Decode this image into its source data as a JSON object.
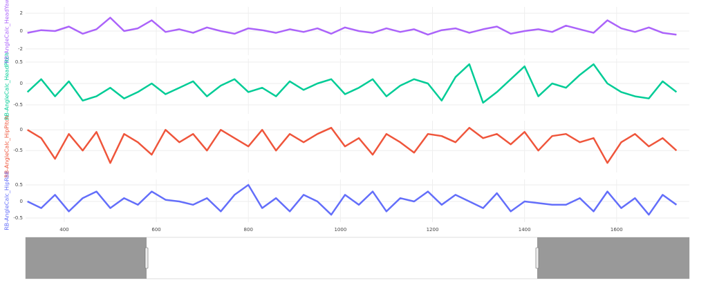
{
  "chart_data": [
    {
      "type": "line",
      "ylabel": "RB-AngleCalc_HeadYaw",
      "xlim": [
        316,
        1758
      ],
      "ylim": [
        -2.7,
        2.7
      ],
      "yticks": [
        -2,
        0,
        2
      ],
      "grid": true,
      "x": [
        320,
        350,
        380,
        410,
        440,
        470,
        500,
        530,
        560,
        590,
        620,
        650,
        680,
        710,
        740,
        770,
        800,
        830,
        860,
        890,
        920,
        950,
        980,
        1010,
        1040,
        1070,
        1100,
        1130,
        1160,
        1190,
        1220,
        1250,
        1280,
        1310,
        1340,
        1370,
        1400,
        1430,
        1460,
        1490,
        1520,
        1550,
        1580,
        1610,
        1640,
        1670,
        1700,
        1730
      ],
      "series": [
        {
          "name": "RB-AngleCalc_HeadYaw",
          "color": "#ab63fa",
          "values": [
            -0.2,
            0.1,
            0.0,
            0.5,
            -0.3,
            0.2,
            1.5,
            0.0,
            0.3,
            1.2,
            -0.1,
            0.2,
            -0.2,
            0.4,
            0.0,
            -0.3,
            0.3,
            0.1,
            -0.2,
            0.2,
            -0.1,
            0.3,
            -0.3,
            0.4,
            0.0,
            -0.2,
            0.3,
            -0.1,
            0.2,
            -0.4,
            0.1,
            0.3,
            -0.2,
            0.2,
            0.5,
            -0.3,
            0.0,
            0.2,
            -0.1,
            0.6,
            0.2,
            -0.2,
            1.2,
            0.3,
            -0.1,
            0.4,
            -0.2,
            -0.4
          ]
        }
      ]
    },
    {
      "type": "line",
      "ylabel": "RB-AngleCalc_HeadPitch",
      "xlim": [
        316,
        1758
      ],
      "ylim": [
        -0.71,
        0.58
      ],
      "yticks": [
        -0.5,
        0,
        0.5
      ],
      "grid": true,
      "x": [
        320,
        350,
        380,
        410,
        440,
        470,
        500,
        530,
        560,
        590,
        620,
        650,
        680,
        710,
        740,
        770,
        800,
        830,
        860,
        890,
        920,
        950,
        980,
        1010,
        1040,
        1070,
        1100,
        1130,
        1160,
        1190,
        1220,
        1250,
        1280,
        1310,
        1340,
        1370,
        1400,
        1430,
        1460,
        1490,
        1520,
        1550,
        1580,
        1610,
        1640,
        1670,
        1700,
        1730
      ],
      "series": [
        {
          "name": "RB-AngleCalc_HeadPitch",
          "color": "#00cc96",
          "values": [
            -0.2,
            0.1,
            -0.3,
            0.05,
            -0.4,
            -0.3,
            -0.1,
            -0.35,
            -0.2,
            0.0,
            -0.25,
            -0.1,
            0.05,
            -0.3,
            -0.05,
            0.1,
            -0.2,
            -0.1,
            -0.3,
            0.05,
            -0.15,
            0.0,
            0.1,
            -0.25,
            -0.1,
            0.1,
            -0.3,
            -0.05,
            0.1,
            0.0,
            -0.4,
            0.15,
            0.45,
            -0.45,
            -0.2,
            0.1,
            0.4,
            -0.3,
            0.0,
            -0.1,
            0.2,
            0.45,
            0.0,
            -0.2,
            -0.3,
            -0.35,
            0.05,
            -0.2
          ]
        }
      ]
    },
    {
      "type": "line",
      "ylabel": "RB-AngleCalc_HipPitch",
      "xlim": [
        316,
        1758
      ],
      "ylim": [
        -1.03,
        0.22
      ],
      "yticks": [
        -0.5,
        0
      ],
      "grid": true,
      "x": [
        320,
        350,
        380,
        410,
        440,
        470,
        500,
        530,
        560,
        590,
        620,
        650,
        680,
        710,
        740,
        770,
        800,
        830,
        860,
        890,
        920,
        950,
        980,
        1010,
        1040,
        1070,
        1100,
        1130,
        1160,
        1190,
        1220,
        1250,
        1280,
        1310,
        1340,
        1370,
        1400,
        1430,
        1460,
        1490,
        1520,
        1550,
        1580,
        1610,
        1640,
        1670,
        1700,
        1730
      ],
      "series": [
        {
          "name": "RB-AngleCalc_HipPitch",
          "color": "#ef553b",
          "values": [
            0.0,
            -0.2,
            -0.7,
            -0.1,
            -0.5,
            -0.05,
            -0.8,
            -0.1,
            -0.3,
            -0.6,
            0.0,
            -0.3,
            -0.1,
            -0.5,
            0.0,
            -0.2,
            -0.4,
            0.0,
            -0.5,
            -0.1,
            -0.3,
            -0.1,
            0.05,
            -0.4,
            -0.2,
            -0.6,
            -0.1,
            -0.3,
            -0.55,
            -0.1,
            -0.15,
            -0.3,
            0.05,
            -0.2,
            -0.1,
            -0.35,
            -0.05,
            -0.5,
            -0.15,
            -0.1,
            -0.3,
            -0.2,
            -0.8,
            -0.3,
            -0.1,
            -0.4,
            -0.2,
            -0.5
          ]
        }
      ]
    },
    {
      "type": "line",
      "ylabel": "RB-AngleCalc_HipRoll",
      "xlim": [
        316,
        1758
      ],
      "ylim": [
        -0.625,
        0.667
      ],
      "yticks": [
        -0.5,
        0,
        0.5
      ],
      "xticks": [
        400,
        600,
        800,
        1000,
        1200,
        1400,
        1600
      ],
      "grid": true,
      "x": [
        320,
        350,
        380,
        410,
        440,
        470,
        500,
        530,
        560,
        590,
        620,
        650,
        680,
        710,
        740,
        770,
        800,
        830,
        860,
        890,
        920,
        950,
        980,
        1010,
        1040,
        1070,
        1100,
        1130,
        1160,
        1190,
        1220,
        1250,
        1280,
        1310,
        1340,
        1370,
        1400,
        1430,
        1460,
        1490,
        1520,
        1550,
        1580,
        1610,
        1640,
        1670,
        1700,
        1730
      ],
      "series": [
        {
          "name": "RB-AngleCalc_HipRoll",
          "color": "#636efa",
          "values": [
            0.0,
            -0.2,
            0.2,
            -0.3,
            0.1,
            0.3,
            -0.2,
            0.1,
            -0.1,
            0.3,
            0.05,
            0.0,
            -0.1,
            0.1,
            -0.3,
            0.2,
            0.5,
            -0.2,
            0.1,
            -0.3,
            0.2,
            0.0,
            -0.4,
            0.2,
            -0.1,
            0.3,
            -0.3,
            0.1,
            0.0,
            0.3,
            -0.1,
            0.2,
            0.0,
            -0.2,
            0.25,
            -0.3,
            0.0,
            -0.05,
            -0.1,
            -0.1,
            0.1,
            -0.3,
            0.3,
            -0.2,
            0.1,
            -0.4,
            0.2,
            -0.1
          ]
        }
      ]
    }
  ]
}
